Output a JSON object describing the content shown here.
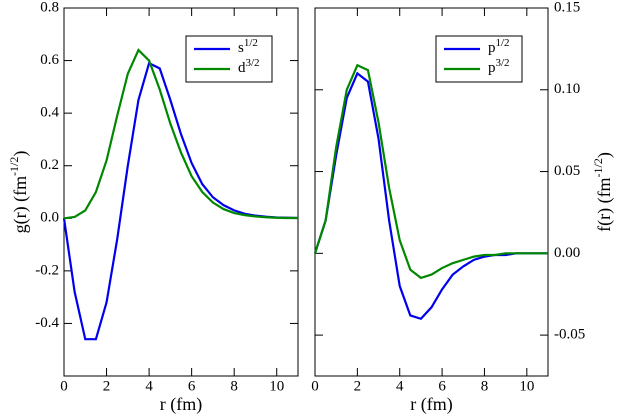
{
  "chart_data": [
    {
      "type": "line",
      "xlabel": "r (fm)",
      "ylabel": [
        "g(r) (fm",
        "-1/2",
        ")"
      ],
      "x": [
        0,
        0.5,
        1,
        1.5,
        2,
        2.5,
        3,
        3.5,
        4,
        4.5,
        5,
        5.5,
        6,
        6.5,
        7,
        7.5,
        8,
        8.5,
        9,
        9.5,
        10,
        10.5,
        11
      ],
      "series": [
        {
          "name": "s1/2",
          "color": "#0000ee",
          "values": [
            0,
            -0.28,
            -0.46,
            -0.46,
            -0.32,
            -0.08,
            0.2,
            0.45,
            0.59,
            0.57,
            0.45,
            0.32,
            0.21,
            0.13,
            0.08,
            0.05,
            0.03,
            0.017,
            0.01,
            0.006,
            0.003,
            0.002,
            0.001
          ]
        },
        {
          "name": "d3/2",
          "color": "#008800",
          "values": [
            0,
            0.005,
            0.03,
            0.1,
            0.22,
            0.39,
            0.55,
            0.64,
            0.6,
            0.49,
            0.36,
            0.25,
            0.16,
            0.1,
            0.06,
            0.035,
            0.02,
            0.012,
            0.007,
            0.004,
            0.002,
            0.001,
            0.001
          ]
        }
      ],
      "xlim": [
        0,
        11
      ],
      "xticks": [
        0,
        2,
        4,
        6,
        8,
        10
      ],
      "ylim": [
        -0.6,
        0.8
      ],
      "yticks": [
        -0.4,
        -0.2,
        {
          "value": 0,
          "label": "0.0"
        },
        0.2,
        0.4,
        0.6,
        0.8
      ],
      "legend": "upper right"
    },
    {
      "type": "line",
      "xlabel": "r (fm)",
      "ylabel": [
        "f(r) (fm",
        "-1/2",
        ")"
      ],
      "x": [
        0,
        0.5,
        1,
        1.5,
        2,
        2.5,
        3,
        3.5,
        4,
        4.5,
        5,
        5.5,
        6,
        6.5,
        7,
        7.5,
        8,
        8.5,
        9,
        9.5,
        10,
        10.5,
        11
      ],
      "series": [
        {
          "name": "p1/2",
          "color": "#0000ee",
          "axis": "y2",
          "values": [
            0,
            0.02,
            0.06,
            0.095,
            0.11,
            0.105,
            0.07,
            0.02,
            -0.02,
            -0.038,
            -0.04,
            -0.033,
            -0.022,
            -0.013,
            -0.008,
            -0.004,
            -0.002,
            -0.001,
            -0.001,
            0,
            0,
            0,
            0
          ]
        },
        {
          "name": "p3/2",
          "color": "#008800",
          "axis": "y2",
          "values": [
            0,
            0.02,
            0.065,
            0.1,
            0.115,
            0.112,
            0.08,
            0.04,
            0.008,
            -0.01,
            -0.015,
            -0.013,
            -0.009,
            -0.006,
            -0.004,
            -0.002,
            -0.001,
            -0.001,
            0,
            0,
            0,
            0,
            0
          ]
        }
      ],
      "xlim": [
        0,
        11
      ],
      "xticks": [
        0,
        2,
        4,
        6,
        8,
        10
      ],
      "y2lim": [
        -0.075,
        0.15
      ],
      "y2ticks": [
        -0.05,
        {
          "value": 0,
          "label": "0.00"
        },
        0.05,
        {
          "value": 0.1,
          "label": "0.10"
        },
        0.15
      ],
      "legend": "upper right"
    }
  ]
}
